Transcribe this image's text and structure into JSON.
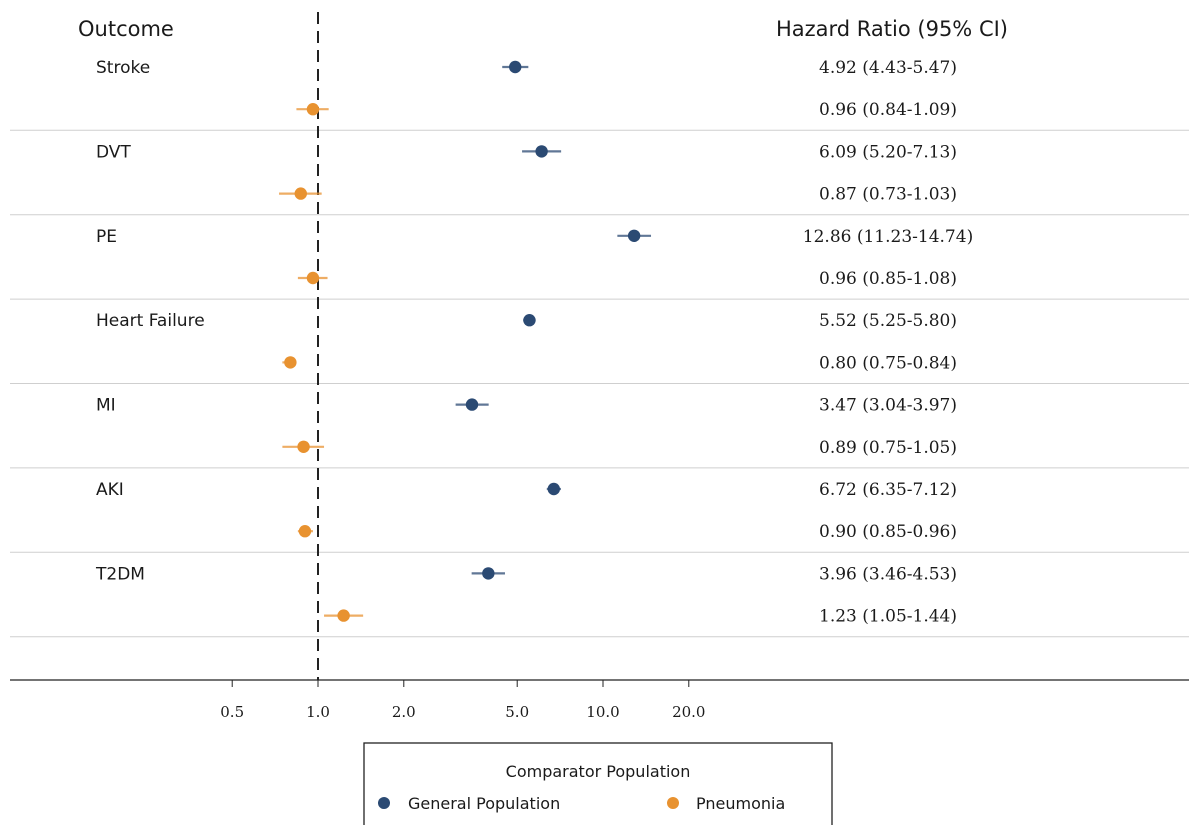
{
  "chart_data": {
    "type": "forest",
    "scale": "log",
    "xlim": [
      0.4,
      100
    ],
    "reference_line": 1.0,
    "reference_line_style": "dashed",
    "x_ticks": [
      "0.5",
      "1.0",
      "2.0",
      "5.0",
      "10.0",
      "20.0"
    ],
    "x_tick_values": [
      0.5,
      1.0,
      2.0,
      5.0,
      10.0,
      20.0
    ],
    "headers": {
      "outcome": "Outcome",
      "hr": "Hazard Ratio (95% CI)"
    },
    "legend": {
      "title": "Comparator Population",
      "placement": "bottom-center",
      "entries": [
        {
          "name": "General Population",
          "color": "#2b4a73"
        },
        {
          "name": "Pneumonia",
          "color": "#e89230"
        }
      ]
    },
    "series": [
      {
        "name": "General Population",
        "color": "#2b4a73"
      },
      {
        "name": "Pneumonia",
        "color": "#e89230"
      }
    ],
    "outcomes": [
      {
        "name": "Stroke",
        "rows": [
          {
            "series": "General Population",
            "hr": 4.92,
            "lo": 4.43,
            "hi": 5.47,
            "label": "4.92 (4.43-5.47)"
          },
          {
            "series": "Pneumonia",
            "hr": 0.96,
            "lo": 0.84,
            "hi": 1.09,
            "label": "0.96 (0.84-1.09)"
          }
        ]
      },
      {
        "name": "DVT",
        "rows": [
          {
            "series": "General Population",
            "hr": 6.09,
            "lo": 5.2,
            "hi": 7.13,
            "label": "6.09 (5.20-7.13)"
          },
          {
            "series": "Pneumonia",
            "hr": 0.87,
            "lo": 0.73,
            "hi": 1.03,
            "label": "0.87 (0.73-1.03)"
          }
        ]
      },
      {
        "name": "PE",
        "rows": [
          {
            "series": "General Population",
            "hr": 12.86,
            "lo": 11.23,
            "hi": 14.74,
            "label": "12.86 (11.23-14.74)"
          },
          {
            "series": "Pneumonia",
            "hr": 0.96,
            "lo": 0.85,
            "hi": 1.08,
            "label": "0.96 (0.85-1.08)"
          }
        ]
      },
      {
        "name": "Heart Failure",
        "rows": [
          {
            "series": "General Population",
            "hr": 5.52,
            "lo": 5.25,
            "hi": 5.8,
            "label": "5.52 (5.25-5.80)"
          },
          {
            "series": "Pneumonia",
            "hr": 0.8,
            "lo": 0.75,
            "hi": 0.84,
            "label": "0.80 (0.75-0.84)"
          }
        ]
      },
      {
        "name": "MI",
        "rows": [
          {
            "series": "General Population",
            "hr": 3.47,
            "lo": 3.04,
            "hi": 3.97,
            "label": "3.47 (3.04-3.97)"
          },
          {
            "series": "Pneumonia",
            "hr": 0.89,
            "lo": 0.75,
            "hi": 1.05,
            "label": "0.89 (0.75-1.05)"
          }
        ]
      },
      {
        "name": "AKI",
        "rows": [
          {
            "series": "General Population",
            "hr": 6.72,
            "lo": 6.35,
            "hi": 7.12,
            "label": "6.72 (6.35-7.12)"
          },
          {
            "series": "Pneumonia",
            "hr": 0.9,
            "lo": 0.85,
            "hi": 0.96,
            "label": "0.90 (0.85-0.96)"
          }
        ]
      },
      {
        "name": "T2DM",
        "rows": [
          {
            "series": "General Population",
            "hr": 3.96,
            "lo": 3.46,
            "hi": 4.53,
            "label": "3.96 (3.46-4.53)"
          },
          {
            "series": "Pneumonia",
            "hr": 1.23,
            "lo": 1.05,
            "hi": 1.44,
            "label": "1.23 (1.05-1.44)"
          }
        ]
      }
    ]
  }
}
